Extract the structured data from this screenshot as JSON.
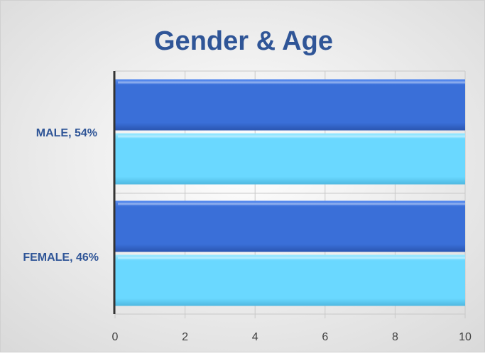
{
  "chart_data": {
    "type": "bar",
    "orientation": "horizontal",
    "title": "Gender & Age",
    "categories": [
      "FEMALE, 46%",
      "MALE, 54%"
    ],
    "series": [
      {
        "values": [
          10,
          10
        ]
      },
      {
        "values": [
          10,
          10
        ]
      }
    ],
    "xlim": [
      0,
      10
    ],
    "xticks": [
      "0",
      "2",
      "4",
      "6",
      "8",
      "10"
    ],
    "xlabel": "",
    "ylabel": "",
    "grid": true,
    "legend": "none"
  },
  "colors": {
    "title": "#2F5597",
    "category_label": "#2F5597",
    "tick_label": "#404040",
    "series_dark": "#3A6FD8",
    "series_light": "#6AD8FF",
    "axis_line": "#333333",
    "gridline": "#C8C8C8",
    "background_center": "#FFFFFF",
    "background_edge": "#D9D9D9"
  }
}
